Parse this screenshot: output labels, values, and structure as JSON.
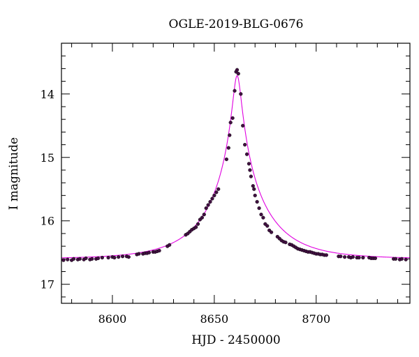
{
  "chart_data": {
    "type": "scatter",
    "title": "OGLE-2019-BLG-0676",
    "xlabel": "HJD - 2450000",
    "ylabel": "I magnitude",
    "xlim": [
      8575,
      8746
    ],
    "ylim": [
      17.3,
      13.2
    ],
    "y_inverted": true,
    "x_ticks": [
      8600,
      8650,
      8700
    ],
    "y_ticks": [
      14,
      15,
      16,
      17
    ],
    "grid": false,
    "legend": "none",
    "colors": {
      "points": "#401040",
      "model": "#e000e0",
      "frame": "#000000"
    },
    "model": {
      "name": "",
      "t0": 8661.2,
      "tE": 28,
      "u0": 0.07,
      "baseline": 16.6
    },
    "series": [
      {
        "name": "",
        "x": [
          8576,
          8578,
          8580,
          8581,
          8583,
          8584,
          8586,
          8587,
          8589,
          8590,
          8592,
          8593,
          8595,
          8598,
          8600,
          8601,
          8603,
          8605,
          8607,
          8608,
          8612,
          8613,
          8615,
          8616,
          8617,
          8618,
          8620,
          8621,
          8622,
          8623,
          8627,
          8628,
          8636,
          8637,
          8638,
          8639,
          8640,
          8641,
          8642,
          8643,
          8644,
          8645,
          8646,
          8647,
          8648,
          8649,
          8650,
          8651,
          8652,
          8656,
          8657,
          8657.5,
          8658,
          8659,
          8660,
          8660.7,
          8661.2,
          8661.8,
          8663,
          8664,
          8665,
          8666,
          8667,
          8667.5,
          8668,
          8669,
          8669.5,
          8670,
          8671,
          8672,
          8673,
          8674,
          8675,
          8676,
          8677,
          8678,
          8681,
          8682,
          8683,
          8684,
          8685,
          8687,
          8688,
          8689,
          8690,
          8691,
          8692,
          8693,
          8694,
          8695,
          8696,
          8697,
          8698,
          8699,
          8700,
          8701,
          8702,
          8703,
          8704,
          8705,
          8711,
          8712,
          8714,
          8716,
          8717,
          8718,
          8720,
          8721,
          8723,
          8726,
          8727,
          8728,
          8729,
          8738,
          8739,
          8741,
          8742,
          8744
        ],
        "y": [
          16.62,
          16.61,
          16.62,
          16.6,
          16.61,
          16.6,
          16.61,
          16.59,
          16.61,
          16.6,
          16.6,
          16.59,
          16.58,
          16.58,
          16.57,
          16.58,
          16.57,
          16.56,
          16.56,
          16.57,
          16.53,
          16.52,
          16.52,
          16.51,
          16.51,
          16.5,
          16.49,
          16.49,
          16.48,
          16.47,
          16.4,
          16.38,
          16.22,
          16.2,
          16.17,
          16.14,
          16.12,
          16.1,
          16.05,
          15.98,
          15.95,
          15.9,
          15.8,
          15.75,
          15.7,
          15.65,
          15.6,
          15.55,
          15.5,
          15.03,
          14.85,
          14.65,
          14.45,
          14.38,
          13.95,
          13.65,
          13.62,
          13.68,
          14.0,
          14.5,
          14.8,
          14.95,
          15.1,
          15.2,
          15.3,
          15.45,
          15.5,
          15.6,
          15.7,
          15.8,
          15.9,
          15.95,
          16.05,
          16.08,
          16.15,
          16.18,
          16.25,
          16.28,
          16.31,
          16.33,
          16.34,
          16.37,
          16.38,
          16.4,
          16.42,
          16.44,
          16.45,
          16.46,
          16.47,
          16.48,
          16.49,
          16.49,
          16.5,
          16.51,
          16.52,
          16.52,
          16.53,
          16.53,
          16.54,
          16.54,
          16.56,
          16.56,
          16.57,
          16.57,
          16.58,
          16.57,
          16.58,
          16.58,
          16.58,
          16.58,
          16.59,
          16.59,
          16.59,
          16.6,
          16.6,
          16.61,
          16.6,
          16.61
        ]
      }
    ]
  }
}
